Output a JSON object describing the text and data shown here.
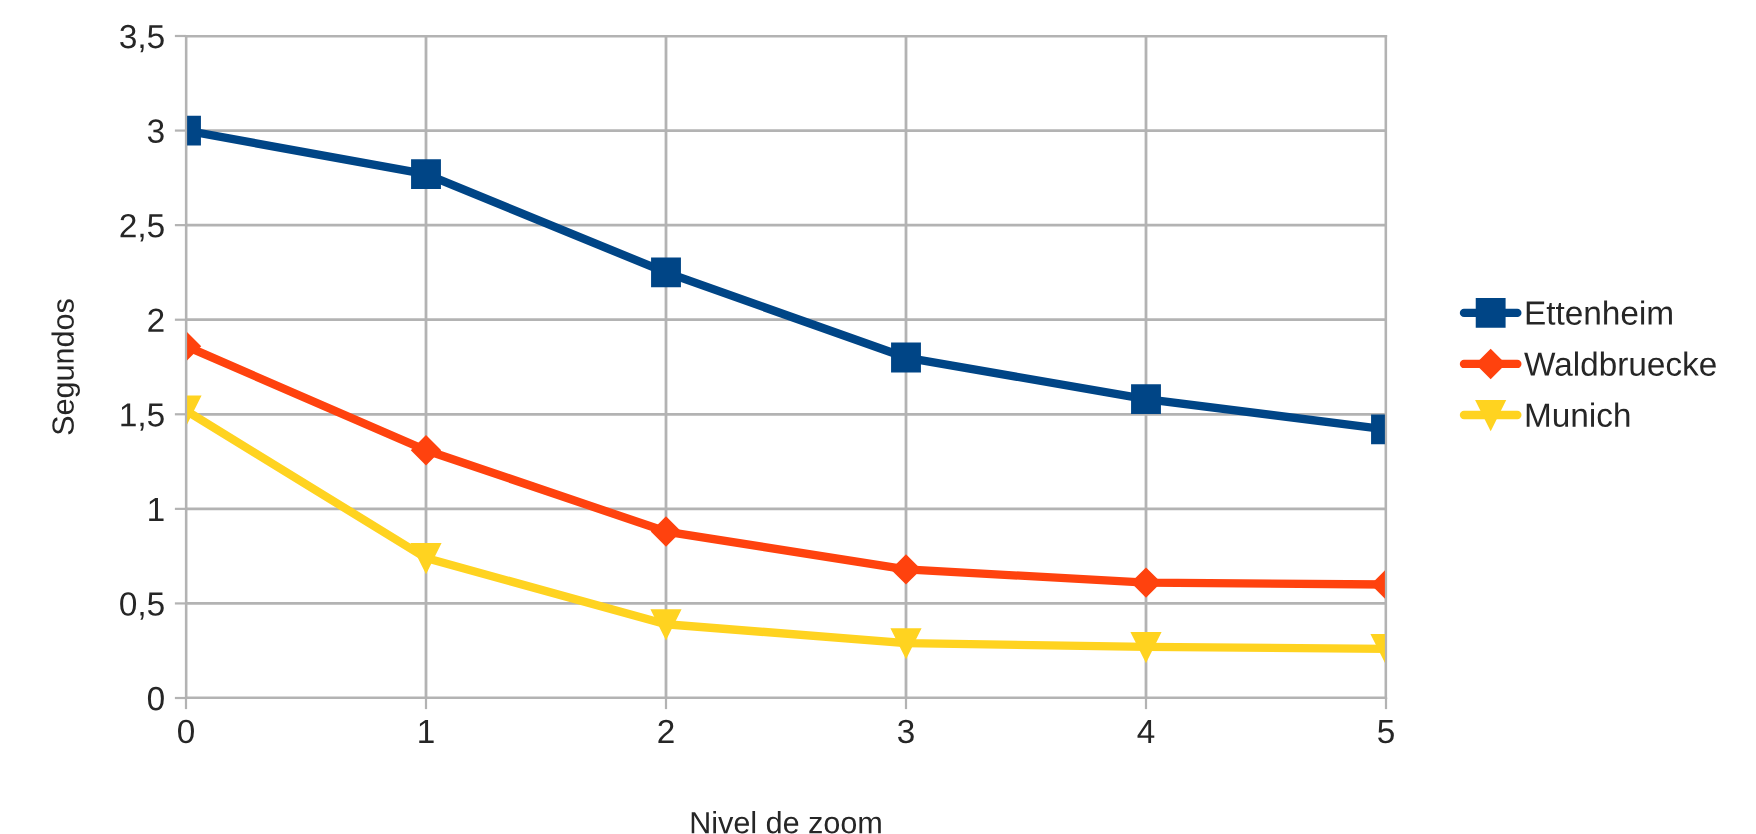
{
  "chart_data": {
    "type": "line",
    "xlabel": "Nivel de zoom",
    "ylabel": "Segundos",
    "x": [
      0,
      1,
      2,
      3,
      4,
      5
    ],
    "series": [
      {
        "name": "Ettenheim",
        "color": "#004586",
        "marker": "square",
        "values": [
          3.0,
          2.77,
          2.25,
          1.8,
          1.58,
          1.42
        ]
      },
      {
        "name": "Waldbruecke",
        "color": "#ff420e",
        "marker": "diamond",
        "values": [
          1.86,
          1.31,
          0.88,
          0.68,
          0.61,
          0.6
        ]
      },
      {
        "name": "Munich",
        "color": "#ffd320",
        "marker": "triangle",
        "values": [
          1.52,
          0.74,
          0.39,
          0.29,
          0.27,
          0.26
        ]
      }
    ],
    "xlim": [
      0,
      5
    ],
    "xticks": [
      0,
      1,
      2,
      3,
      4,
      5
    ],
    "ylim": [
      0,
      3.5
    ],
    "yticks": [
      0,
      {
        "value": 0.5,
        "label": "0,5"
      },
      1,
      {
        "value": 1.5,
        "label": "1,5"
      },
      2,
      {
        "value": 2.5,
        "label": "2,5"
      },
      3,
      {
        "value": 3.5,
        "label": "3,5"
      }
    ],
    "grid": true,
    "legend": "right",
    "line_style": "solid"
  }
}
